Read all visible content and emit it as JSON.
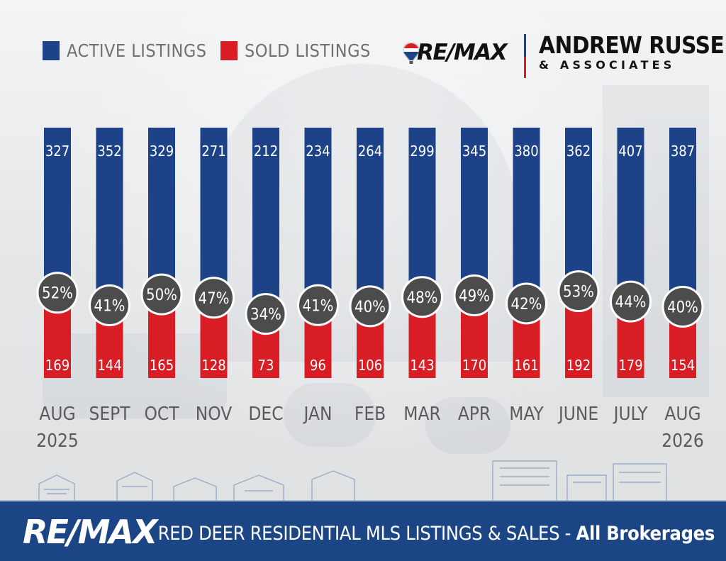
{
  "legend": {
    "active_label": "ACTIVE LISTINGS",
    "sold_label": "SOLD LISTINGS"
  },
  "logos": {
    "remax_top": "RE/MAX",
    "agency_name": "ANDREW RUSSELL",
    "agency_sub": "& ASSOCIATES",
    "remax_footer": "RE/MAX"
  },
  "footer": {
    "title_main": "RED DEER RESIDENTIAL MLS LISTINGS & SALES - ",
    "title_sub": "All Brokerages"
  },
  "colors": {
    "active": "#1d4287",
    "sold": "#d81d24",
    "badge": "#4c4c4c",
    "footer": "#1c4586"
  },
  "chart_data": {
    "type": "bar",
    "categories": [
      [
        "AUG",
        "2025"
      ],
      [
        "SEPT"
      ],
      [
        "OCT"
      ],
      [
        "NOV"
      ],
      [
        "DEC"
      ],
      [
        "JAN"
      ],
      [
        "FEB"
      ],
      [
        "MAR"
      ],
      [
        "APR"
      ],
      [
        "MAY"
      ],
      [
        "JUNE"
      ],
      [
        "JULY"
      ],
      [
        "AUG",
        "2026"
      ]
    ],
    "series": [
      {
        "name": "ACTIVE LISTINGS",
        "values": [
          327,
          352,
          329,
          271,
          212,
          234,
          264,
          299,
          345,
          380,
          362,
          407,
          387
        ]
      },
      {
        "name": "SOLD LISTINGS",
        "values": [
          169,
          144,
          165,
          128,
          73,
          96,
          106,
          143,
          170,
          161,
          192,
          179,
          154
        ]
      }
    ],
    "ratio_labels": [
      "52%",
      "41%",
      "50%",
      "47%",
      "34%",
      "41%",
      "40%",
      "48%",
      "49%",
      "42%",
      "53%",
      "44%",
      "40%"
    ],
    "stacked": "percent",
    "legend_position": "top-left"
  }
}
